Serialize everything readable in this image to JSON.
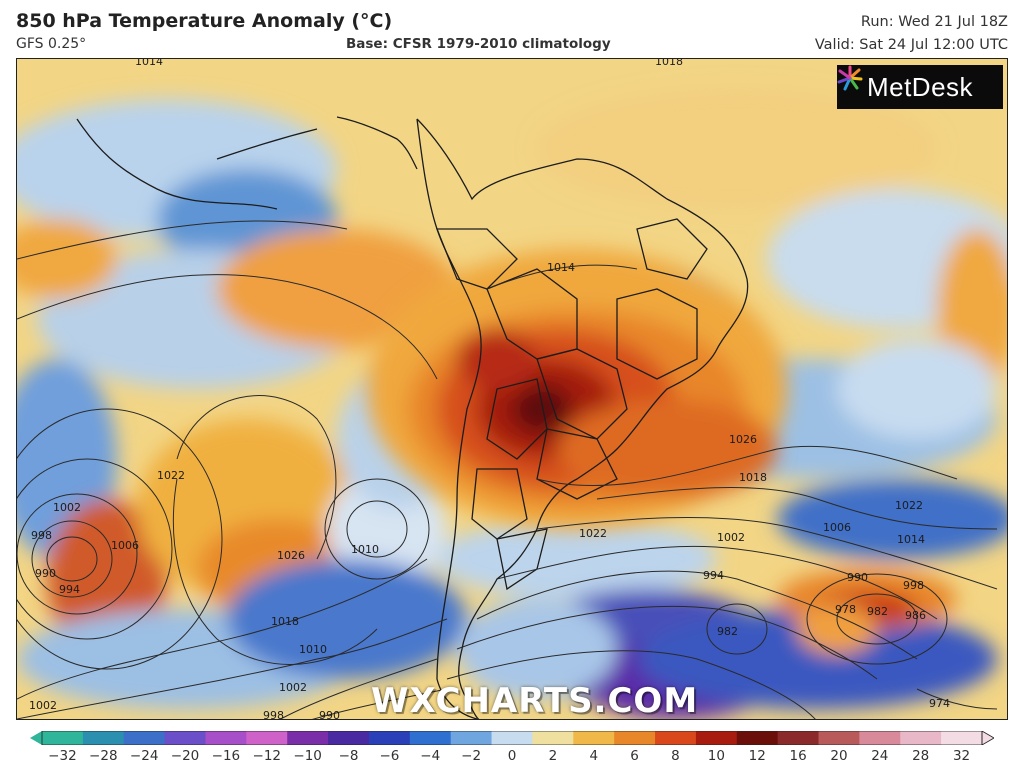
{
  "header": {
    "title": "850 hPa Temperature Anomaly (°C)",
    "model": "GFS 0.25°",
    "base": "Base: CFSR 1979-2010 climatology",
    "run": "Run: Wed 21 Jul 18Z",
    "valid": "Valid: Sat 24 Jul 12:00 UTC"
  },
  "logo": {
    "text": "MetDesk",
    "icon": "metdesk-star-icon"
  },
  "watermark": "WXCHARTS.COM",
  "map": {
    "region": "South America and surrounding oceans",
    "isobar_labels": [
      "1014",
      "1018",
      "1014",
      "1026",
      "1018",
      "1022",
      "1014",
      "1006",
      "998",
      "990",
      "982",
      "978",
      "986",
      "1022",
      "1002",
      "994",
      "982",
      "1010",
      "1026",
      "1022",
      "1002",
      "998",
      "994",
      "990",
      "1006",
      "1018",
      "1010",
      "1002",
      "998",
      "990",
      "1002",
      "974"
    ]
  },
  "colorbar": {
    "ticks": [
      "−32",
      "−28",
      "−24",
      "−20",
      "−16",
      "−12",
      "−10",
      "−8",
      "−6",
      "−4",
      "−2",
      "0",
      "2",
      "4",
      "6",
      "8",
      "10",
      "12",
      "16",
      "20",
      "24",
      "28",
      "32"
    ],
    "colors": [
      "#2fb59a",
      "#2b8fb0",
      "#3b6fc8",
      "#6a4fc8",
      "#a74fc8",
      "#cf62c8",
      "#7a2fa8",
      "#4a2aa0",
      "#2a40b8",
      "#2f6fd0",
      "#6fa6e0",
      "#c8dcf0",
      "#f0e0a0",
      "#f0b848",
      "#e8862a",
      "#d9481a",
      "#a81c10",
      "#6b0f0a",
      "#8a2a2a",
      "#b85a5a",
      "#d88a9a",
      "#e8b8c8",
      "#f4dce4"
    ]
  }
}
